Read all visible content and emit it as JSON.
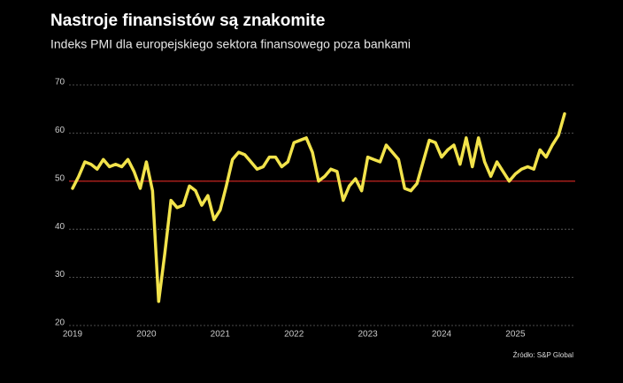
{
  "chart_data": {
    "type": "line",
    "title": "Nastroje finansistów są znakomite",
    "subtitle": "Indeks PMI dla europejskiego sektora finansowego poza bankami",
    "source": "Źródło: S&P Global",
    "categories": [
      "2019",
      null,
      null,
      null,
      null,
      null,
      null,
      null,
      null,
      null,
      null,
      null,
      "2020",
      null,
      null,
      null,
      null,
      null,
      null,
      null,
      null,
      null,
      null,
      null,
      "2021",
      null,
      null,
      null,
      null,
      null,
      null,
      null,
      null,
      null,
      null,
      null,
      "2022",
      null,
      null,
      null,
      null,
      null,
      null,
      null,
      null,
      null,
      null,
      null,
      "2023",
      null,
      null,
      null,
      null,
      null,
      null,
      null,
      null,
      null,
      null,
      null,
      "2024",
      null,
      null,
      null,
      null,
      null,
      null,
      null,
      null,
      null,
      null,
      null,
      "2025",
      null,
      null,
      null,
      null,
      null,
      null,
      null,
      null
    ],
    "series": [
      {
        "color": "#f2e34b",
        "values": [
          48.5,
          51,
          54,
          53.5,
          52.5,
          54.5,
          53,
          53.5,
          53,
          54.5,
          52,
          48.5,
          54,
          48,
          25,
          35,
          46,
          44.5,
          45,
          49,
          48,
          45,
          47,
          42,
          44,
          49,
          54.5,
          56,
          55.5,
          54,
          52.5,
          53,
          55,
          55,
          53,
          54,
          58,
          58.5,
          59,
          56,
          50,
          51,
          52.5,
          52,
          46,
          49,
          50.5,
          48,
          55,
          54.5,
          54,
          57.5,
          56,
          54.5,
          48.5,
          48,
          49.5,
          54,
          58.5,
          58,
          55,
          56.5,
          57.5,
          53.5,
          59,
          53,
          59,
          54,
          51,
          54,
          52,
          50,
          51.5,
          52.5,
          53,
          52.5,
          56.5,
          55,
          57.5,
          59.5,
          64
        ]
      }
    ],
    "ylim": [
      20,
      70
    ],
    "yticks": [
      20,
      30,
      40,
      50,
      60,
      70
    ],
    "grid": true,
    "reference_line": {
      "value": 50,
      "color": "#b3201d"
    }
  }
}
